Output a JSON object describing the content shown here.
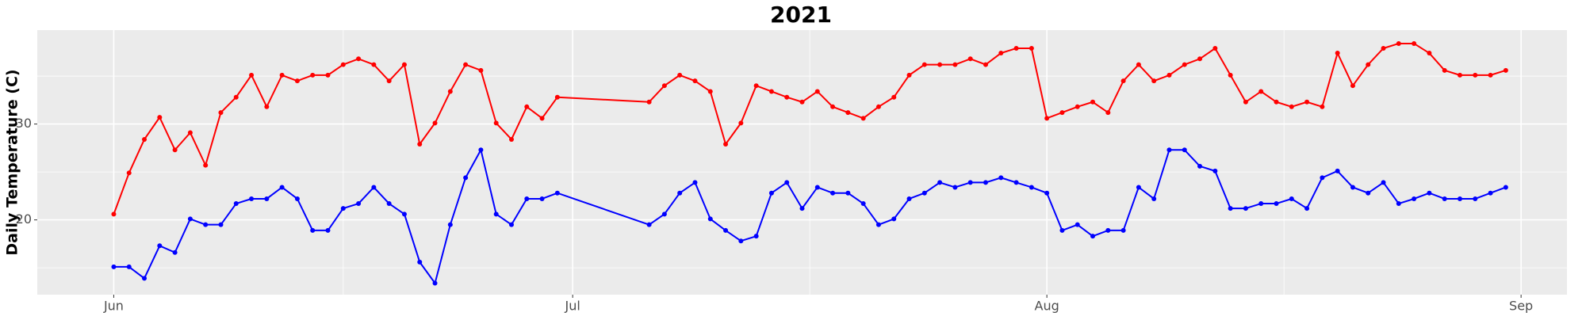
{
  "chart_data": {
    "type": "line",
    "title": "2021",
    "y_label": "Daily Temperature (C)",
    "x": [
      "2021-06-01",
      "2021-06-02",
      "2021-06-03",
      "2021-06-04",
      "2021-06-05",
      "2021-06-06",
      "2021-06-07",
      "2021-06-08",
      "2021-06-09",
      "2021-06-10",
      "2021-06-11",
      "2021-06-12",
      "2021-06-13",
      "2021-06-14",
      "2021-06-15",
      "2021-06-16",
      "2021-06-17",
      "2021-06-18",
      "2021-06-19",
      "2021-06-20",
      "2021-06-21",
      "2021-06-22",
      "2021-06-23",
      "2021-06-24",
      "2021-06-25",
      "2021-06-26",
      "2021-06-27",
      "2021-06-28",
      "2021-06-29",
      "2021-06-30",
      "2021-07-06",
      "2021-07-07",
      "2021-07-08",
      "2021-07-09",
      "2021-07-10",
      "2021-07-11",
      "2021-07-12",
      "2021-07-13",
      "2021-07-14",
      "2021-07-15",
      "2021-07-16",
      "2021-07-17",
      "2021-07-18",
      "2021-07-19",
      "2021-07-20",
      "2021-07-21",
      "2021-07-22",
      "2021-07-23",
      "2021-07-24",
      "2021-07-25",
      "2021-07-26",
      "2021-07-27",
      "2021-07-28",
      "2021-07-29",
      "2021-07-30",
      "2021-07-31",
      "2021-08-01",
      "2021-08-02",
      "2021-08-03",
      "2021-08-04",
      "2021-08-05",
      "2021-08-06",
      "2021-08-07",
      "2021-08-08",
      "2021-08-09",
      "2021-08-10",
      "2021-08-11",
      "2021-08-12",
      "2021-08-13",
      "2021-08-14",
      "2021-08-15",
      "2021-08-16",
      "2021-08-17",
      "2021-08-18",
      "2021-08-19",
      "2021-08-20",
      "2021-08-21",
      "2021-08-22",
      "2021-08-23",
      "2021-08-24",
      "2021-08-25",
      "2021-08-26",
      "2021-08-27",
      "2021-08-28",
      "2021-08-29",
      "2021-08-30",
      "2021-08-31"
    ],
    "series": [
      {
        "color": "#ff0000",
        "values": [
          20.6,
          24.9,
          28.4,
          30.7,
          27.3,
          29.1,
          25.7,
          31.2,
          32.8,
          35.1,
          31.8,
          35.1,
          34.5,
          35.1,
          35.1,
          36.2,
          36.8,
          36.2,
          34.5,
          36.2,
          27.9,
          30.1,
          33.4,
          36.2,
          35.6,
          30.1,
          28.4,
          31.8,
          30.6,
          32.8,
          32.3,
          34.0,
          35.1,
          34.5,
          33.4,
          27.9,
          30.1,
          34.0,
          33.4,
          32.8,
          32.3,
          33.4,
          31.8,
          31.2,
          30.6,
          31.8,
          32.8,
          35.1,
          36.2,
          36.2,
          36.2,
          36.8,
          36.2,
          37.4,
          37.9,
          37.9,
          30.6,
          31.2,
          31.8,
          32.3,
          31.2,
          34.5,
          36.2,
          34.5,
          35.1,
          36.2,
          36.8,
          37.9,
          35.1,
          32.3,
          33.4,
          32.3,
          31.8,
          32.3,
          31.8,
          37.4,
          34.0,
          36.2,
          37.9,
          38.4,
          38.4,
          37.4,
          35.6,
          35.1,
          35.1,
          35.1,
          35.6
        ]
      },
      {
        "color": "#0000ff",
        "values": [
          15.1,
          15.1,
          13.9,
          17.3,
          16.6,
          20.1,
          19.5,
          19.5,
          21.7,
          22.2,
          22.2,
          23.4,
          22.2,
          18.9,
          18.9,
          21.2,
          21.7,
          23.4,
          21.7,
          20.6,
          15.6,
          13.4,
          19.5,
          24.4,
          27.3,
          20.6,
          19.5,
          22.2,
          22.2,
          22.8,
          19.5,
          20.6,
          22.8,
          23.9,
          20.1,
          18.9,
          17.8,
          18.3,
          22.8,
          23.9,
          21.2,
          23.4,
          22.8,
          22.8,
          21.7,
          19.5,
          20.1,
          22.2,
          22.8,
          23.9,
          23.4,
          23.9,
          23.9,
          24.4,
          23.9,
          23.4,
          22.8,
          18.9,
          19.5,
          18.3,
          18.9,
          18.9,
          23.4,
          22.2,
          27.3,
          27.3,
          25.6,
          25.1,
          21.2,
          21.2,
          21.7,
          21.7,
          22.2,
          21.2,
          24.4,
          25.1,
          23.4,
          22.8,
          23.9,
          21.7,
          22.2,
          22.8,
          22.2,
          22.2,
          22.2,
          22.8,
          23.4
        ]
      }
    ],
    "xlim": [
      "2021-05-27",
      "2021-09-04"
    ],
    "xticks": [
      {
        "value": "2021-06-01",
        "label": "Jun"
      },
      {
        "value": "2021-07-01",
        "label": "Jul"
      },
      {
        "value": "2021-08-01",
        "label": "Aug"
      },
      {
        "value": "2021-09-01",
        "label": "Sep"
      }
    ],
    "ylim": [
      12.2,
      39.8
    ],
    "yticks": [
      20,
      30
    ],
    "grid": true
  }
}
